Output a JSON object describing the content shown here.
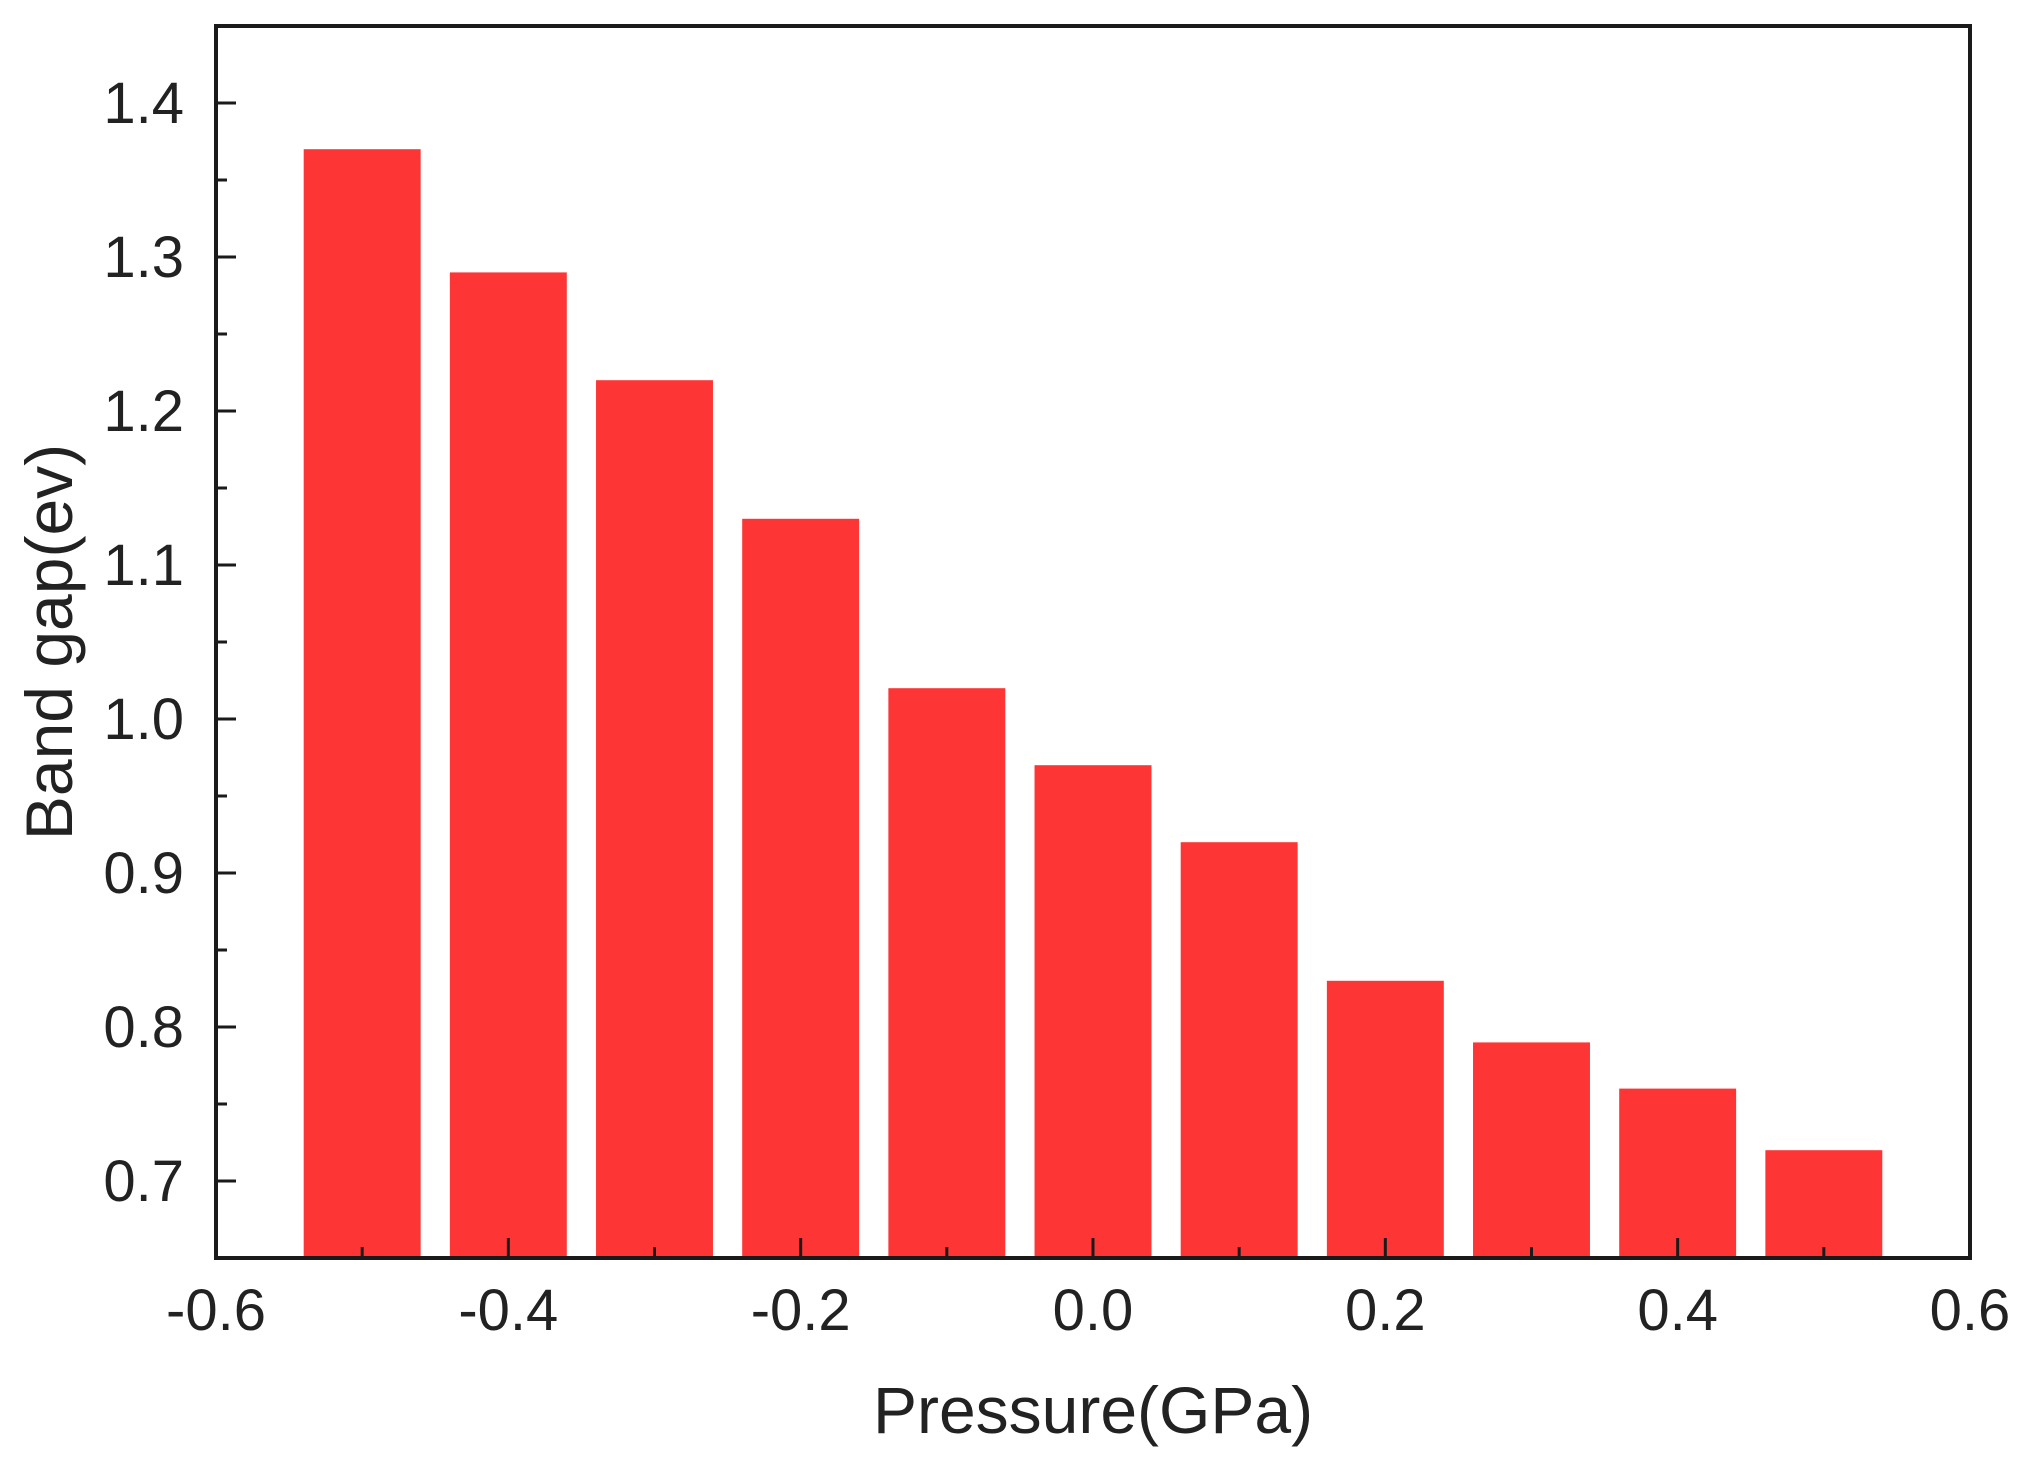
{
  "chart_data": {
    "type": "bar",
    "title": "",
    "xlabel": "Pressure(GPa)",
    "ylabel": "Band gap(ev)",
    "x": [
      -0.5,
      -0.4,
      -0.3,
      -0.2,
      -0.1,
      0.0,
      0.1,
      0.2,
      0.3,
      0.4,
      0.5
    ],
    "values": [
      1.37,
      1.29,
      1.22,
      1.13,
      1.02,
      0.97,
      0.92,
      0.83,
      0.79,
      0.76,
      0.72
    ],
    "bar_width": 0.08,
    "xlim": [
      -0.6,
      0.6
    ],
    "ylim": [
      0.65,
      1.45
    ],
    "xticks": [
      -0.6,
      -0.4,
      -0.2,
      0.0,
      0.2,
      0.4,
      0.6
    ],
    "xtick_labels": [
      "-0.6",
      "-0.4",
      "-0.2",
      "0.0",
      "0.2",
      "0.4",
      "0.6"
    ],
    "yticks": [
      0.7,
      0.8,
      0.9,
      1.0,
      1.1,
      1.2,
      1.3,
      1.4
    ],
    "ytick_labels": [
      "0.7",
      "0.8",
      "0.9",
      "1.0",
      "1.1",
      "1.2",
      "1.3",
      "1.4"
    ],
    "grid": false,
    "legend": "none",
    "colors": {
      "bar": "#fe3535",
      "axis": "#1a1a1a",
      "text": "#222222"
    }
  }
}
